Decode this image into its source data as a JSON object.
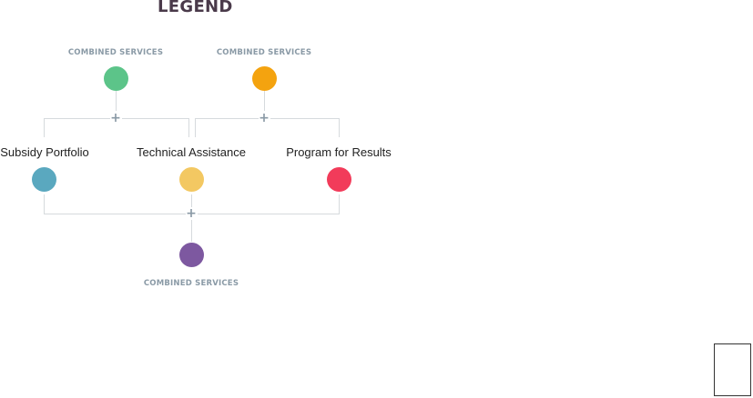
{
  "legend": {
    "title": "LEGEND"
  },
  "combined_label": "COMBINED SERVICES",
  "services": {
    "subsidy": "Subsidy Portfolio",
    "technical": "Technical Assistance",
    "program": "Program for Results"
  },
  "colors": {
    "title": "#4a3a4a",
    "combo_label": "#8a9aa6",
    "connector": "#d6dadd",
    "plus": "#8a9aa6",
    "green": "#5cc489",
    "orange": "#f4a30f",
    "teal": "#5aa8bf",
    "yellow": "#f3c862",
    "red": "#f23b5a",
    "purple": "#7d58a0"
  }
}
